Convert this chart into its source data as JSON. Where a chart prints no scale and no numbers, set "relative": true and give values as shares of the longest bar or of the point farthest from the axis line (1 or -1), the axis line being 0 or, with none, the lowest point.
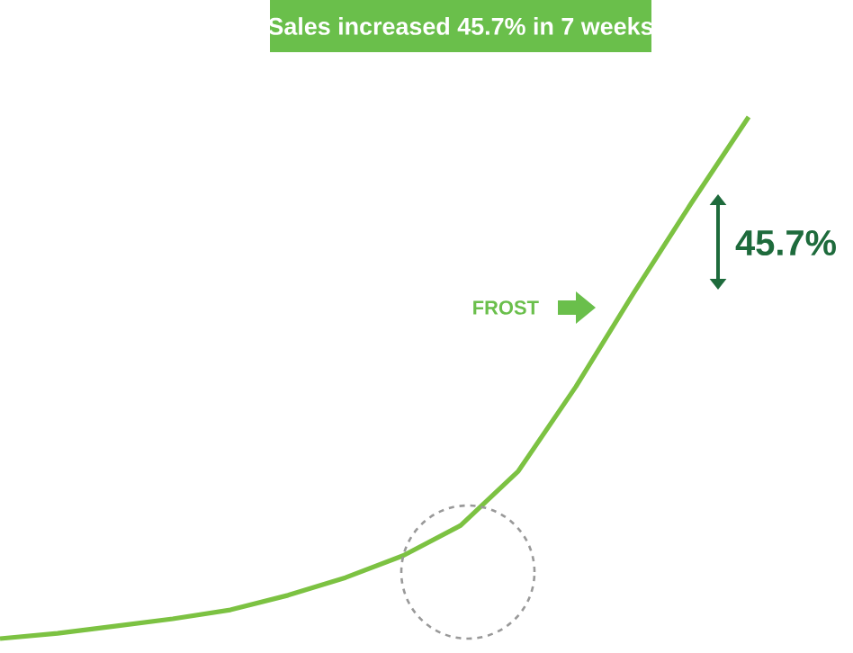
{
  "chart_data": {
    "type": "line",
    "title": "Sales increased 45.7% in 7 weeks",
    "relative": true,
    "categories": [
      null,
      null,
      null,
      null,
      null,
      null,
      null,
      null,
      null,
      null,
      null,
      null,
      null,
      null
    ],
    "series": [
      {
        "color": "#7cc242",
        "values": [
          0,
          0.01,
          0.024,
          0.038,
          0.055,
          0.083,
          0.117,
          0.159,
          0.217,
          0.321,
          0.483,
          0.662,
          0.834,
          1
        ]
      }
    ],
    "annotations": [
      "FROST",
      "45.7%"
    ]
  }
}
